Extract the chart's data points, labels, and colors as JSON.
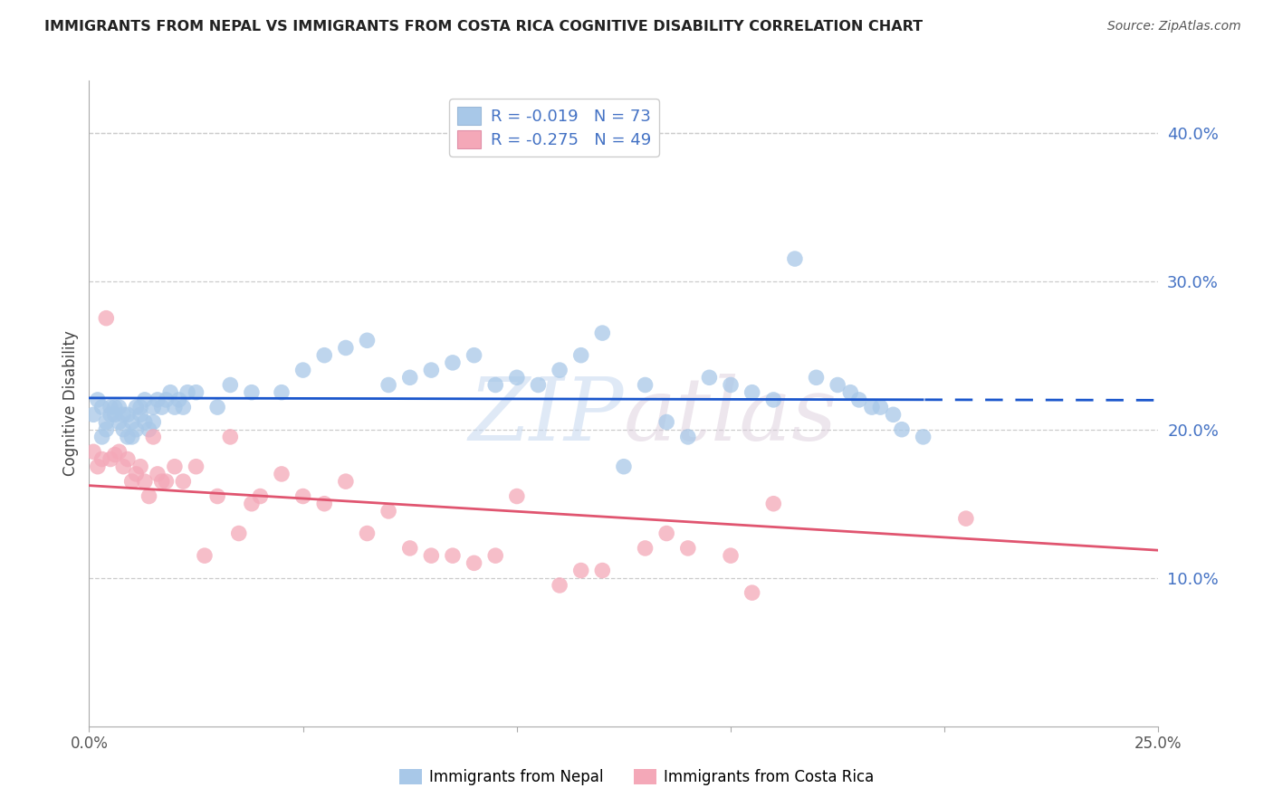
{
  "title": "IMMIGRANTS FROM NEPAL VS IMMIGRANTS FROM COSTA RICA COGNITIVE DISABILITY CORRELATION CHART",
  "source": "Source: ZipAtlas.com",
  "ylabel": "Cognitive Disability",
  "xlim": [
    0.0,
    0.25
  ],
  "ylim": [
    0.0,
    0.435
  ],
  "nepal_R": -0.019,
  "nepal_N": 73,
  "costa_rica_R": -0.275,
  "costa_rica_N": 49,
  "nepal_color": "#a8c8e8",
  "costa_rica_color": "#f4a8b8",
  "nepal_line_color": "#1a56cc",
  "costa_rica_line_color": "#e05570",
  "legend_value_color": "#4472c4",
  "nepal_x": [
    0.001,
    0.002,
    0.003,
    0.003,
    0.004,
    0.004,
    0.005,
    0.005,
    0.006,
    0.006,
    0.007,
    0.007,
    0.008,
    0.008,
    0.009,
    0.009,
    0.01,
    0.01,
    0.011,
    0.011,
    0.012,
    0.012,
    0.013,
    0.013,
    0.014,
    0.015,
    0.015,
    0.016,
    0.017,
    0.018,
    0.019,
    0.02,
    0.021,
    0.022,
    0.023,
    0.025,
    0.03,
    0.033,
    0.038,
    0.045,
    0.05,
    0.055,
    0.06,
    0.065,
    0.07,
    0.075,
    0.08,
    0.085,
    0.09,
    0.095,
    0.1,
    0.105,
    0.11,
    0.115,
    0.12,
    0.125,
    0.13,
    0.135,
    0.14,
    0.145,
    0.15,
    0.155,
    0.16,
    0.165,
    0.17,
    0.175,
    0.178,
    0.18,
    0.183,
    0.185,
    0.188,
    0.19,
    0.195
  ],
  "nepal_y": [
    0.21,
    0.22,
    0.195,
    0.215,
    0.205,
    0.2,
    0.215,
    0.21,
    0.215,
    0.21,
    0.205,
    0.215,
    0.2,
    0.21,
    0.195,
    0.21,
    0.195,
    0.205,
    0.215,
    0.2,
    0.21,
    0.215,
    0.205,
    0.22,
    0.2,
    0.215,
    0.205,
    0.22,
    0.215,
    0.22,
    0.225,
    0.215,
    0.22,
    0.215,
    0.225,
    0.225,
    0.215,
    0.23,
    0.225,
    0.225,
    0.24,
    0.25,
    0.255,
    0.26,
    0.23,
    0.235,
    0.24,
    0.245,
    0.25,
    0.23,
    0.235,
    0.23,
    0.24,
    0.25,
    0.265,
    0.175,
    0.23,
    0.205,
    0.195,
    0.235,
    0.23,
    0.225,
    0.22,
    0.315,
    0.235,
    0.23,
    0.225,
    0.22,
    0.215,
    0.215,
    0.21,
    0.2,
    0.195
  ],
  "costa_rica_x": [
    0.001,
    0.002,
    0.003,
    0.004,
    0.005,
    0.006,
    0.007,
    0.008,
    0.009,
    0.01,
    0.011,
    0.012,
    0.013,
    0.014,
    0.015,
    0.016,
    0.017,
    0.018,
    0.02,
    0.022,
    0.025,
    0.027,
    0.03,
    0.033,
    0.035,
    0.038,
    0.04,
    0.045,
    0.05,
    0.055,
    0.06,
    0.065,
    0.07,
    0.075,
    0.08,
    0.085,
    0.09,
    0.095,
    0.1,
    0.11,
    0.115,
    0.12,
    0.13,
    0.135,
    0.14,
    0.15,
    0.155,
    0.16,
    0.205
  ],
  "costa_rica_y": [
    0.185,
    0.175,
    0.18,
    0.275,
    0.18,
    0.183,
    0.185,
    0.175,
    0.18,
    0.165,
    0.17,
    0.175,
    0.165,
    0.155,
    0.195,
    0.17,
    0.165,
    0.165,
    0.175,
    0.165,
    0.175,
    0.115,
    0.155,
    0.195,
    0.13,
    0.15,
    0.155,
    0.17,
    0.155,
    0.15,
    0.165,
    0.13,
    0.145,
    0.12,
    0.115,
    0.115,
    0.11,
    0.115,
    0.155,
    0.095,
    0.105,
    0.105,
    0.12,
    0.13,
    0.12,
    0.115,
    0.09,
    0.15,
    0.14
  ]
}
